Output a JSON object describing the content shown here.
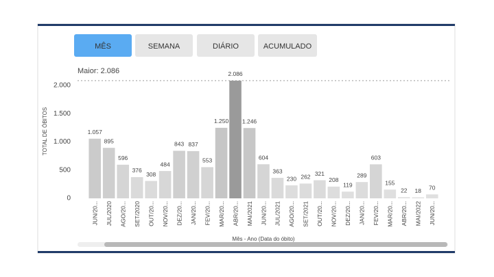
{
  "tabs": [
    "MÊS",
    "SEMANA",
    "DIÁRIO",
    "ACUMULADO"
  ],
  "active_tab": 0,
  "chart_data": {
    "type": "bar",
    "annotation": "Maior: 2.086",
    "ylabel": "TOTAL DE ÓBITOS",
    "xlabel": "Mês - Ano (Data do óbito)",
    "categories": [
      "JUN/20...",
      "JUL/2020",
      "AGO/20...",
      "SET/2020",
      "OUT/20...",
      "NOV/20...",
      "DEZ/20...",
      "JAN/20...",
      "FEV/20...",
      "MAR/20...",
      "ABR/20...",
      "MAI/2021",
      "JUN/20...",
      "JUL/2021",
      "AGO/20...",
      "SET/2021",
      "OUT/20...",
      "NOV/20...",
      "DEZ/20...",
      "JAN/20...",
      "FEV/20...",
      "MAR/20...",
      "ABR/20...",
      "MAI/2022",
      "JUN/20..."
    ],
    "values": [
      1057,
      895,
      596,
      376,
      308,
      484,
      843,
      837,
      553,
      1250,
      2086,
      1246,
      604,
      363,
      230,
      262,
      321,
      208,
      119,
      289,
      603,
      155,
      22,
      18,
      70
    ],
    "value_labels": [
      "1.057",
      "895",
      "596",
      "376",
      "308",
      "484",
      "843",
      "837",
      "553",
      "1.250",
      "2.086",
      "1.246",
      "604",
      "363",
      "230",
      "262",
      "321",
      "208",
      "119",
      "289",
      "603",
      "155",
      "22",
      "18",
      "70"
    ],
    "color_scale": [
      "#e2e2e2",
      "#b4b4b4"
    ],
    "highlight_color": "#9a9a9a",
    "ylim": [
      0,
      2200
    ],
    "yticks": [
      0,
      500,
      {
        "value": 1000,
        "label": "1.000"
      },
      {
        "value": 1500,
        "label": "1.500"
      },
      {
        "value": 2000,
        "label": "2.000"
      }
    ]
  }
}
